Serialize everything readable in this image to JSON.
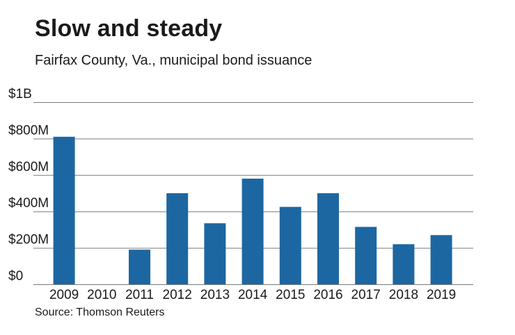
{
  "chart_data": {
    "type": "bar",
    "title": "Slow and steady",
    "subtitle": "Fairfax County, Va., municipal bond issuance",
    "source": "Source: Thomson Reuters",
    "categories": [
      "2009",
      "2010",
      "2011",
      "2012",
      "2013",
      "2014",
      "2015",
      "2016",
      "2017",
      "2018",
      "2019"
    ],
    "values": [
      810,
      0,
      190,
      500,
      335,
      580,
      425,
      500,
      315,
      220,
      270
    ],
    "value_unit": "$M",
    "ylim": [
      0,
      1000
    ],
    "yticks": [
      0,
      200,
      400,
      600,
      800,
      1000
    ],
    "ytick_labels": [
      "$0",
      "$200M",
      "$400M",
      "$600M",
      "$800M",
      "$1B"
    ],
    "grid": true,
    "bar_color": "#1c67a2",
    "legend": "none"
  }
}
